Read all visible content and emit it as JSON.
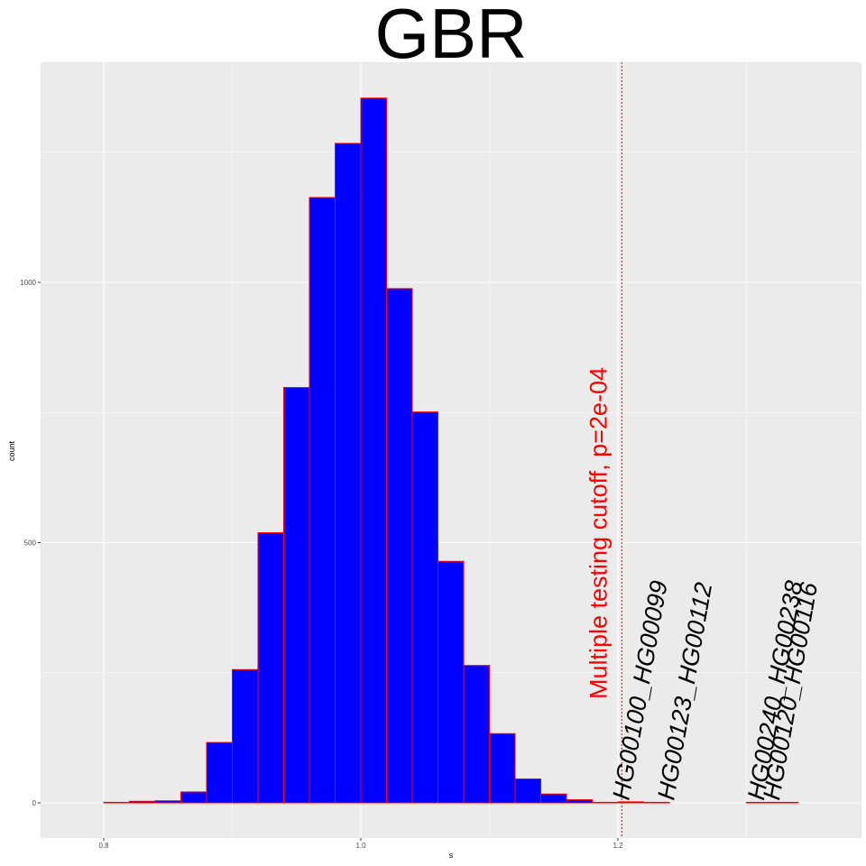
{
  "chart_data": {
    "type": "bar",
    "title": "GBR",
    "xlabel": "s",
    "ylabel": "count",
    "xlim": [
      0.78,
      1.36
    ],
    "ylim": [
      0,
      1380
    ],
    "x_ticks": [
      0.8,
      1.0,
      1.2
    ],
    "x_tick_labels": [
      "0.8",
      "1.0",
      "1.2"
    ],
    "y_ticks": [
      0,
      500,
      1000
    ],
    "y_tick_labels": [
      "0",
      "500",
      "1000"
    ],
    "grid": true,
    "bar_fill": "#0000ff",
    "bar_outline": "#ff0000",
    "bin_width": 0.02,
    "bins": [
      {
        "x0": 0.78,
        "x1": 0.8,
        "count": 0
      },
      {
        "x0": 0.8,
        "x1": 0.82,
        "count": 1
      },
      {
        "x0": 0.82,
        "x1": 0.84,
        "count": 3
      },
      {
        "x0": 0.84,
        "x1": 0.86,
        "count": 4
      },
      {
        "x0": 0.86,
        "x1": 0.88,
        "count": 21
      },
      {
        "x0": 0.88,
        "x1": 0.9,
        "count": 116
      },
      {
        "x0": 0.9,
        "x1": 0.92,
        "count": 256
      },
      {
        "x0": 0.92,
        "x1": 0.94,
        "count": 519
      },
      {
        "x0": 0.94,
        "x1": 0.96,
        "count": 798
      },
      {
        "x0": 0.96,
        "x1": 0.98,
        "count": 1163
      },
      {
        "x0": 0.98,
        "x1": 1.0,
        "count": 1267
      },
      {
        "x0": 1.0,
        "x1": 1.02,
        "count": 1354
      },
      {
        "x0": 1.02,
        "x1": 1.04,
        "count": 988
      },
      {
        "x0": 1.04,
        "x1": 1.06,
        "count": 751
      },
      {
        "x0": 1.06,
        "x1": 1.08,
        "count": 464
      },
      {
        "x0": 1.08,
        "x1": 1.1,
        "count": 264
      },
      {
        "x0": 1.1,
        "x1": 1.12,
        "count": 133
      },
      {
        "x0": 1.12,
        "x1": 1.14,
        "count": 46
      },
      {
        "x0": 1.14,
        "x1": 1.16,
        "count": 17
      },
      {
        "x0": 1.16,
        "x1": 1.18,
        "count": 6
      },
      {
        "x0": 1.18,
        "x1": 1.2,
        "count": 1
      },
      {
        "x0": 1.2,
        "x1": 1.22,
        "count": 2
      },
      {
        "x0": 1.22,
        "x1": 1.24,
        "count": 1
      },
      {
        "x0": 1.24,
        "x1": 1.26,
        "count": 0
      },
      {
        "x0": 1.26,
        "x1": 1.28,
        "count": 0
      },
      {
        "x0": 1.28,
        "x1": 1.3,
        "count": 0
      },
      {
        "x0": 1.3,
        "x1": 1.32,
        "count": 1
      },
      {
        "x0": 1.32,
        "x1": 1.34,
        "count": 1
      },
      {
        "x0": 1.34,
        "x1": 1.36,
        "count": 0
      }
    ],
    "cutoff": {
      "x": 1.203,
      "label": "Multiple testing cutoff, p=2e-04",
      "color": "#ff0000"
    },
    "annotations": [
      {
        "text": "HG00100_HG00099",
        "x": 1.205
      },
      {
        "text": "HG00123_HG00112",
        "x": 1.24
      },
      {
        "text": "HG00240_HG00238",
        "x": 1.31
      },
      {
        "text": "HG00120_HG00116",
        "x": 1.322
      }
    ]
  }
}
